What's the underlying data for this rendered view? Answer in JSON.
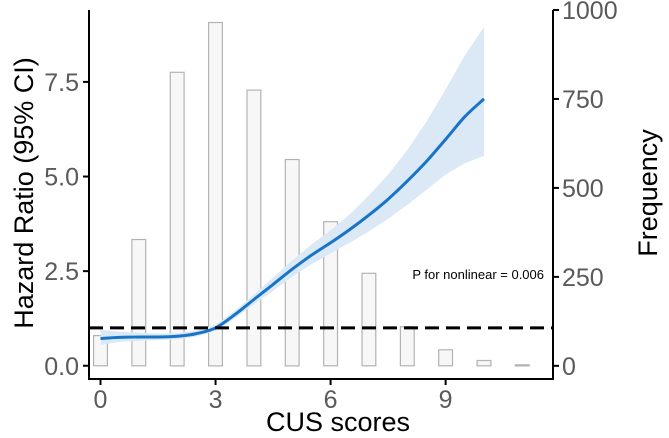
{
  "chart_data": {
    "type": "line",
    "xlabel": "CUS scores",
    "ylabel_left": "Hazard Ratio (95% CI)",
    "ylabel_right": "Frequency",
    "annotation": "P for nonlinear = 0.006",
    "x_range": [
      -0.3,
      11.8
    ],
    "y_left_range": [
      -0.35,
      9.4
    ],
    "y_right_range": [
      -37,
      1000
    ],
    "x_ticks": [
      0,
      3,
      6,
      9
    ],
    "y_left_ticks": [
      0.0,
      2.5,
      5.0,
      7.5
    ],
    "y_left_tick_labels": [
      "0.0",
      "2.5",
      "5.0",
      "7.5"
    ],
    "y_right_ticks": [
      0,
      250,
      500,
      750,
      1000
    ],
    "reference_line": {
      "y": 1.0,
      "style": "dashed"
    },
    "histogram": {
      "x": [
        0,
        1,
        2,
        3,
        4,
        5,
        6,
        7,
        8,
        9,
        10,
        11
      ],
      "frequency": [
        85,
        355,
        825,
        965,
        775,
        580,
        405,
        260,
        110,
        45,
        15,
        3
      ]
    },
    "hr_curve": {
      "x": [
        0,
        0.5,
        1,
        1.5,
        2,
        2.5,
        3,
        3.5,
        4,
        4.5,
        5,
        5.5,
        6,
        6.5,
        7,
        7.5,
        8,
        8.5,
        9,
        9.5,
        10
      ],
      "hr": [
        0.72,
        0.75,
        0.76,
        0.76,
        0.78,
        0.85,
        1.0,
        1.35,
        1.75,
        2.15,
        2.55,
        2.92,
        3.25,
        3.6,
        3.98,
        4.4,
        4.88,
        5.4,
        5.98,
        6.58,
        7.05
      ],
      "lower": [
        0.55,
        0.63,
        0.66,
        0.68,
        0.7,
        0.77,
        0.92,
        1.25,
        1.62,
        1.98,
        2.35,
        2.68,
        2.97,
        3.25,
        3.55,
        3.88,
        4.25,
        4.65,
        5.05,
        5.35,
        5.55
      ],
      "upper": [
        0.95,
        0.9,
        0.87,
        0.85,
        0.86,
        0.93,
        1.08,
        1.45,
        1.88,
        2.33,
        2.78,
        3.2,
        3.58,
        4.0,
        4.5,
        5.05,
        5.7,
        6.45,
        7.3,
        8.2,
        8.95
      ]
    },
    "colors": {
      "curve": "#1874c7",
      "ci_band": "#dbe8f6",
      "reference": "#000000",
      "bar_fill": "#f7f7f7",
      "bar_stroke": "#b3b3b3"
    },
    "grid": false
  }
}
